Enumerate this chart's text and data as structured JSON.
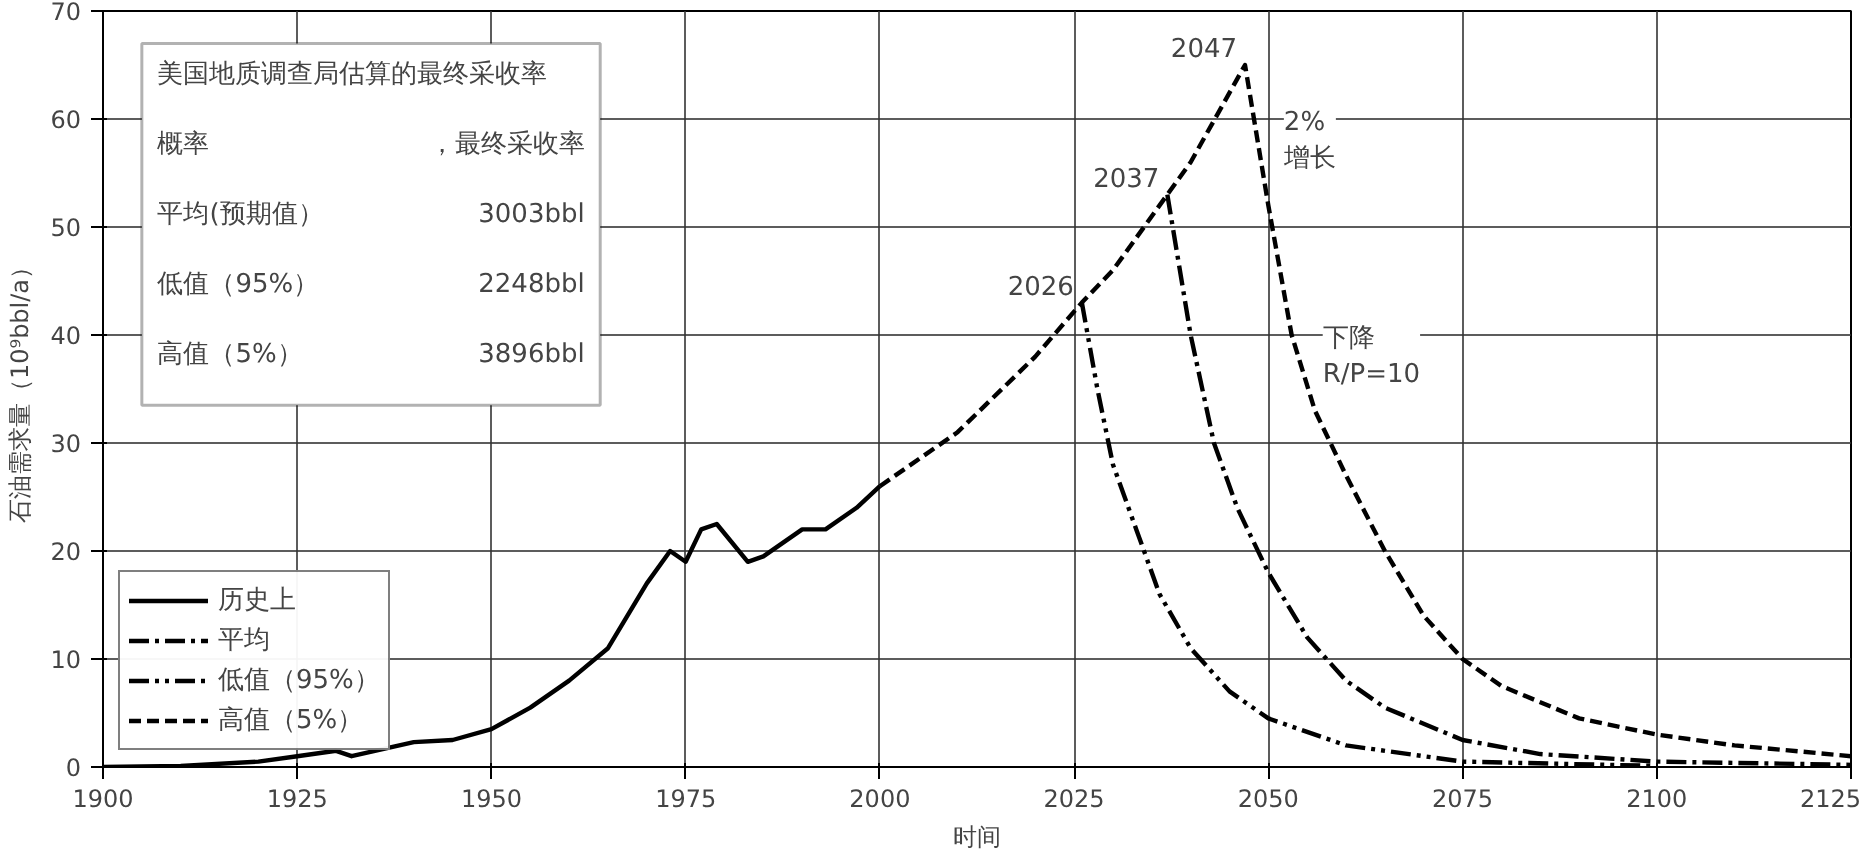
{
  "chart_data": {
    "type": "line",
    "xlabel": "时间",
    "ylabel": "石油需求量（10⁹bbl/a）",
    "xlim": [
      1900,
      2125
    ],
    "xticks": [
      1900,
      1925,
      1950,
      1975,
      2000,
      2025,
      2050,
      2075,
      2100,
      2125
    ],
    "ylim": [
      0,
      70
    ],
    "yticks": [
      0,
      10,
      20,
      30,
      40,
      50,
      60,
      70
    ],
    "grid": true,
    "legend": "bottom left",
    "series": [
      {
        "name": "历史上",
        "color": "#000000",
        "line_style": "solid",
        "x": [
          1900,
          1910,
          1920,
          1925,
          1930,
          1932,
          1935,
          1940,
          1945,
          1950,
          1955,
          1960,
          1965,
          1970,
          1973,
          1975,
          1977,
          1979,
          1983,
          1985,
          1990,
          1993,
          1997,
          2000
        ],
        "values": [
          0,
          0.1,
          0.5,
          1.0,
          1.5,
          1.0,
          1.5,
          2.3,
          2.5,
          3.5,
          5.5,
          8,
          11,
          17,
          20,
          19,
          22,
          22.5,
          19,
          19.5,
          22,
          22,
          24,
          26
        ]
      },
      {
        "name": "平均",
        "color": "#000000",
        "line_style": "dashdot",
        "x": [
          2037,
          2040,
          2043,
          2046,
          2050,
          2055,
          2060,
          2065,
          2075,
          2085,
          2100,
          2125
        ],
        "values": [
          53,
          40,
          30,
          24,
          18,
          12,
          8,
          5.5,
          2.5,
          1.2,
          0.5,
          0.2
        ]
      },
      {
        "name": "低值（95%）",
        "color": "#000000",
        "line_style": "dashdotdot",
        "x": [
          2026,
          2028,
          2030,
          2033,
          2036,
          2040,
          2045,
          2050,
          2060,
          2075,
          2100
        ],
        "values": [
          43,
          35,
          28,
          22,
          16,
          11,
          7,
          4.5,
          2,
          0.5,
          0.1
        ]
      },
      {
        "name": "高值（5%）",
        "color": "#000000",
        "line_style": "dashed",
        "x": [
          2000,
          2010,
          2020,
          2026,
          2030,
          2037,
          2040,
          2047,
          2050,
          2053,
          2056,
          2060,
          2065,
          2070,
          2075,
          2080,
          2090,
          2100,
          2110,
          2125
        ],
        "values": [
          26,
          31,
          38,
          43,
          46,
          53,
          56,
          65,
          52,
          40,
          33,
          27,
          20,
          14,
          10,
          7.5,
          4.5,
          3,
          2,
          1
        ]
      }
    ],
    "annotations": [
      "美国地质调查局估算的最终采收率",
      "概率",
      "，最终采收率",
      "平均(预期值）",
      "3003bbl",
      "低值（95%）",
      "2248bbl",
      "高值（5%）",
      "3896bbl",
      {
        "text": "2026",
        "x": 2026,
        "y": 43
      },
      {
        "text": "2037",
        "x": 2037,
        "y": 53
      },
      {
        "text": "2047",
        "x": 2047,
        "y": 65
      },
      "2%\n增长",
      "下降\nR/P=10"
    ]
  }
}
